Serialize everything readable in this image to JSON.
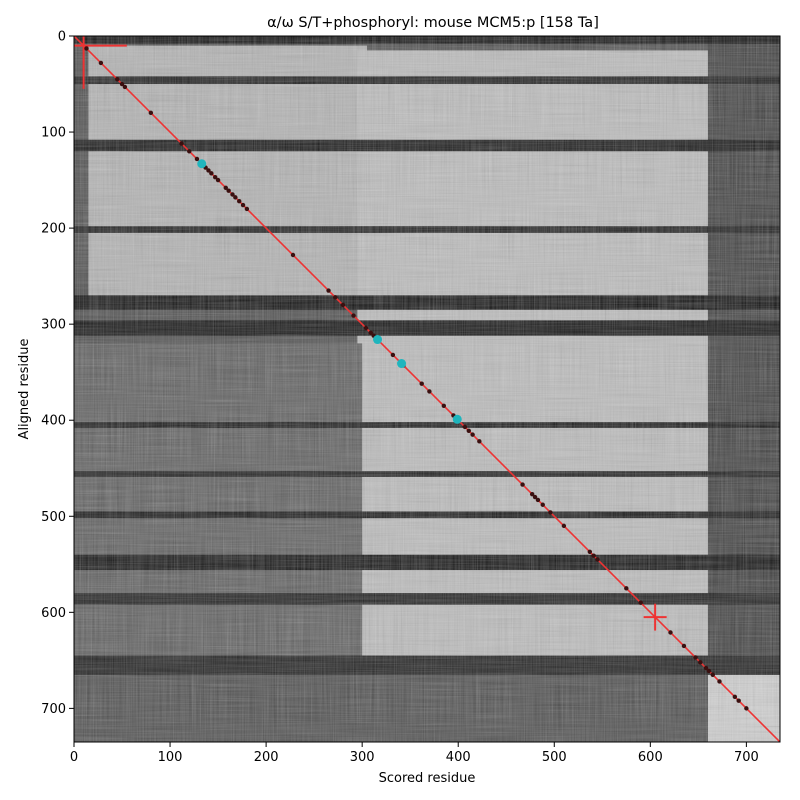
{
  "chart_data": {
    "type": "heatmap",
    "title": "α/ω S/T+phosphoryl: mouse MCM5:p [158 Ta]",
    "xlabel": "Scored residue",
    "ylabel": "Aligned residue",
    "xlim": [
      0,
      735
    ],
    "ylim": [
      735,
      0
    ],
    "x_ticks": [
      0,
      100,
      200,
      300,
      400,
      500,
      600,
      700
    ],
    "y_ticks": [
      0,
      100,
      200,
      300,
      400,
      500,
      600,
      700
    ],
    "grid": false,
    "colormap": "grayscale",
    "background_blocks": [
      {
        "x": [
          0,
          735
        ],
        "y": [
          0,
          735
        ],
        "level": 0.28
      },
      {
        "x": [
          15,
          305
        ],
        "y": [
          10,
          275
        ],
        "level": 0.7
      },
      {
        "x": [
          295,
          660
        ],
        "y": [
          15,
          650
        ],
        "level": 0.74
      },
      {
        "x": [
          0,
          300
        ],
        "y": [
          320,
          660
        ],
        "level": 0.35
      },
      {
        "x": [
          660,
          735
        ],
        "y": [
          665,
          735
        ],
        "level": 0.82
      },
      {
        "x": [
          660,
          735
        ],
        "y": [
          0,
          665
        ],
        "level": 0.22
      },
      {
        "x": [
          0,
          735
        ],
        "y": [
          645,
          665
        ],
        "level": 0.08
      }
    ],
    "dark_bands_y": [
      {
        "y": [
          0,
          8
        ],
        "level": 0.03
      },
      {
        "y": [
          42,
          50
        ],
        "level": 0.08
      },
      {
        "y": [
          108,
          120
        ],
        "level": 0.05
      },
      {
        "y": [
          198,
          205
        ],
        "level": 0.08
      },
      {
        "y": [
          270,
          285
        ],
        "level": 0.03
      },
      {
        "y": [
          296,
          312
        ],
        "level": 0.03
      },
      {
        "y": [
          402,
          408
        ],
        "level": 0.06
      },
      {
        "y": [
          453,
          459
        ],
        "level": 0.08
      },
      {
        "y": [
          495,
          502
        ],
        "level": 0.05
      },
      {
        "y": [
          540,
          556
        ],
        "level": 0.04
      },
      {
        "y": [
          580,
          592
        ],
        "level": 0.08
      }
    ],
    "diagonal": {
      "x": [
        0,
        735
      ],
      "y": [
        0,
        735
      ],
      "color": "#ee3333"
    },
    "red_crosses": [
      {
        "x": 10,
        "y": 10,
        "h": [
          0,
          55
        ],
        "v": [
          0,
          55
        ]
      },
      {
        "x": 605,
        "y": 605,
        "h": [
          593,
          617
        ],
        "v": [
          591,
          619
        ]
      }
    ],
    "points_dark": [
      13,
      28,
      45,
      50,
      53,
      80,
      112,
      120,
      128,
      137,
      140,
      143,
      147,
      150,
      158,
      161,
      165,
      168,
      172,
      176,
      180,
      228,
      265,
      272,
      280,
      291,
      304,
      309,
      312,
      316,
      332,
      343,
      362,
      370,
      385,
      395,
      407,
      411,
      415,
      422,
      467,
      477,
      480,
      483,
      488,
      496,
      510,
      537,
      541,
      545,
      575,
      590,
      621,
      635,
      647,
      652,
      658,
      661,
      665,
      672,
      688,
      692,
      700
    ],
    "points_cyan": [
      133,
      316,
      341,
      399
    ],
    "colors": {
      "diagonal": "#ee3333",
      "dark_point": "#3a1010",
      "cyan_point": "#1fb5bd",
      "cross": "#ee3333"
    }
  }
}
